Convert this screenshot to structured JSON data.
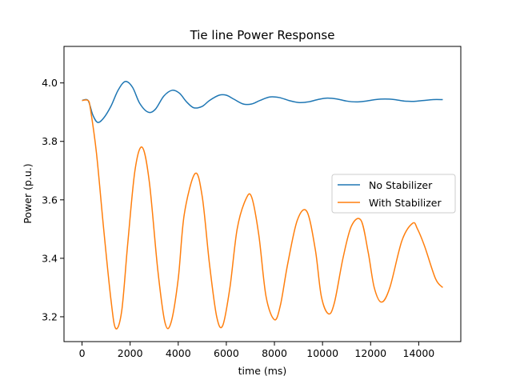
{
  "chart_data": {
    "type": "line",
    "title": "Tie line Power Response",
    "xlabel": "time (ms)",
    "ylabel": "Power (p.u.)",
    "xlim": [
      -750,
      15750
    ],
    "ylim": [
      3.115,
      4.125
    ],
    "xticks": [
      0,
      2000,
      4000,
      6000,
      8000,
      10000,
      12000,
      14000
    ],
    "xtick_labels": [
      "0",
      "2000",
      "4000",
      "6000",
      "8000",
      "10000",
      "12000",
      "14000"
    ],
    "yticks": [
      3.2,
      3.4,
      3.6,
      3.8,
      4.0
    ],
    "ytick_labels": [
      "3.2",
      "3.4",
      "3.6",
      "3.8",
      "4.0"
    ],
    "grid": false,
    "legend_position": "center-right",
    "series": [
      {
        "name": "No Stabilizer",
        "color": "#1f77b4",
        "x": [
          0,
          250,
          450,
          650,
          900,
          1200,
          1500,
          1800,
          2100,
          2400,
          2750,
          3050,
          3400,
          3750,
          4050,
          4350,
          4650,
          5000,
          5300,
          5700,
          6000,
          6300,
          6700,
          7050,
          7400,
          7800,
          8200,
          8600,
          9000,
          9400,
          9800,
          10200,
          10600,
          11000,
          11400,
          11800,
          12200,
          12600,
          13000,
          13400,
          13800,
          14200,
          14600,
          15000
        ],
        "y": [
          3.94,
          3.94,
          3.89,
          3.865,
          3.88,
          3.92,
          3.975,
          4.005,
          3.985,
          3.93,
          3.9,
          3.91,
          3.955,
          3.975,
          3.965,
          3.935,
          3.915,
          3.92,
          3.94,
          3.958,
          3.958,
          3.945,
          3.928,
          3.928,
          3.94,
          3.952,
          3.95,
          3.94,
          3.933,
          3.935,
          3.943,
          3.948,
          3.945,
          3.938,
          3.935,
          3.938,
          3.943,
          3.945,
          3.943,
          3.938,
          3.937,
          3.94,
          3.943,
          3.943
        ]
      },
      {
        "name": "With Stabilizer",
        "color": "#ff7f0e",
        "x": [
          0,
          250,
          350,
          600,
          900,
          1200,
          1400,
          1650,
          1900,
          2200,
          2500,
          2800,
          3150,
          3450,
          3700,
          4000,
          4250,
          4700,
          5000,
          5300,
          5600,
          5850,
          6150,
          6450,
          6800,
          7050,
          7350,
          7650,
          8000,
          8250,
          8550,
          8950,
          9350,
          9700,
          9950,
          10250,
          10500,
          10850,
          11200,
          11600,
          11900,
          12150,
          12450,
          12800,
          13300,
          13750,
          13950,
          14250,
          14700,
          15000
        ],
        "y": [
          3.94,
          3.94,
          3.91,
          3.76,
          3.5,
          3.26,
          3.16,
          3.22,
          3.45,
          3.7,
          3.78,
          3.66,
          3.36,
          3.18,
          3.18,
          3.33,
          3.55,
          3.69,
          3.61,
          3.38,
          3.2,
          3.17,
          3.3,
          3.5,
          3.6,
          3.61,
          3.48,
          3.27,
          3.19,
          3.24,
          3.38,
          3.53,
          3.56,
          3.43,
          3.27,
          3.21,
          3.25,
          3.4,
          3.51,
          3.53,
          3.42,
          3.3,
          3.25,
          3.3,
          3.46,
          3.52,
          3.5,
          3.44,
          3.33,
          3.3
        ]
      }
    ]
  }
}
